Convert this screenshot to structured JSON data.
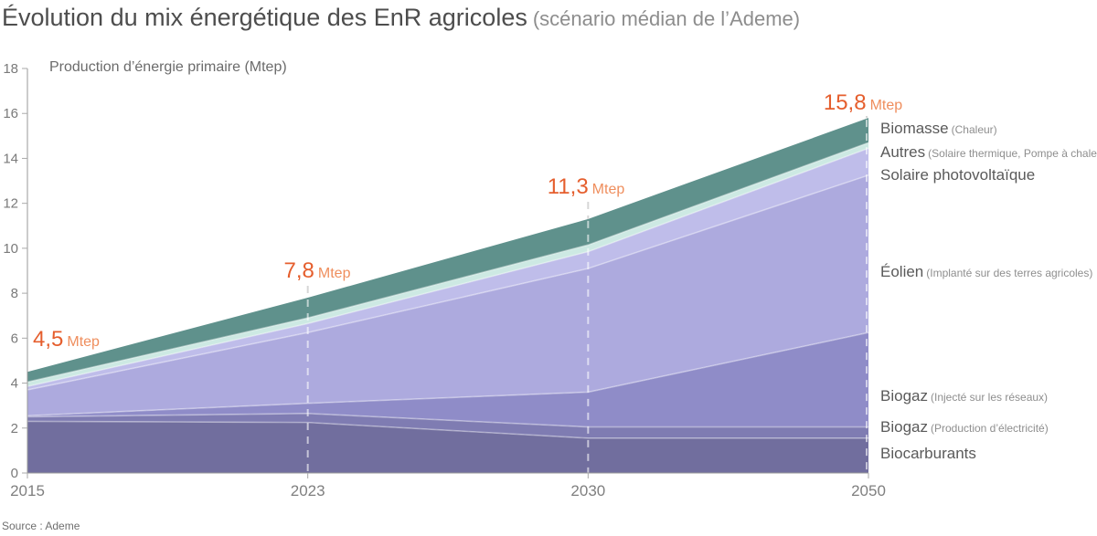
{
  "title": {
    "main": "Évolution du mix énergétique des EnR agricoles",
    "subtitle": "(scénario médian de l’Ademe)"
  },
  "axis_title": "Production d’énergie primaire (Mtep)",
  "source": "Source : Ademe",
  "accent_color": "#e55e2d",
  "accent_light_color": "#ef8e5d",
  "axis_color": "#999999",
  "tick_label_color": "#7a7a7a",
  "chart_data": {
    "type": "area",
    "stacked": true,
    "title": "Évolution du mix énergétique des EnR agricoles (scénario médian de l’Ademe)",
    "categories": [
      "2015",
      "2023",
      "2030",
      "2050"
    ],
    "ylabel": "Production d’énergie primaire (Mtep)",
    "ylim": [
      0,
      18
    ],
    "ytick_interval": 2,
    "grid": false,
    "legend_position": "right",
    "series": [
      {
        "name": "Biocarburants",
        "note": "",
        "color": "#716e9e",
        "values": [
          2.3,
          2.25,
          1.55,
          1.55
        ]
      },
      {
        "name": "Biogaz",
        "note": "(Production d’électricité)",
        "color": "#7f7cb2",
        "values": [
          0.2,
          0.4,
          0.5,
          0.5
        ]
      },
      {
        "name": "Biogaz",
        "note": "(Injecté sur les réseaux)",
        "color": "#8f8cc8",
        "values": [
          0.05,
          0.45,
          1.55,
          4.2
        ]
      },
      {
        "name": "Éolien",
        "note": "(Implanté sur des terres agricoles)",
        "color": "#adaade",
        "values": [
          1.15,
          3.15,
          5.5,
          7.0
        ]
      },
      {
        "name": "Solaire photovoltaïque",
        "note": "",
        "color": "#bfbdea",
        "values": [
          0.15,
          0.4,
          0.75,
          1.2
        ]
      },
      {
        "name": "Autres",
        "note": "(Solaire thermique, Pompe à chaleur)",
        "color": "#cde9e3",
        "values": [
          0.2,
          0.25,
          0.3,
          0.25
        ]
      },
      {
        "name": "Biomasse",
        "note": "(Chaleur)",
        "color": "#5f918c",
        "values": [
          0.45,
          0.9,
          1.15,
          1.1
        ]
      }
    ],
    "totals": {
      "values": [
        4.5,
        7.8,
        11.3,
        15.8
      ],
      "labels": [
        "4,5",
        "7,8",
        "11,3",
        "15,8"
      ],
      "unit": "Mtep"
    }
  }
}
